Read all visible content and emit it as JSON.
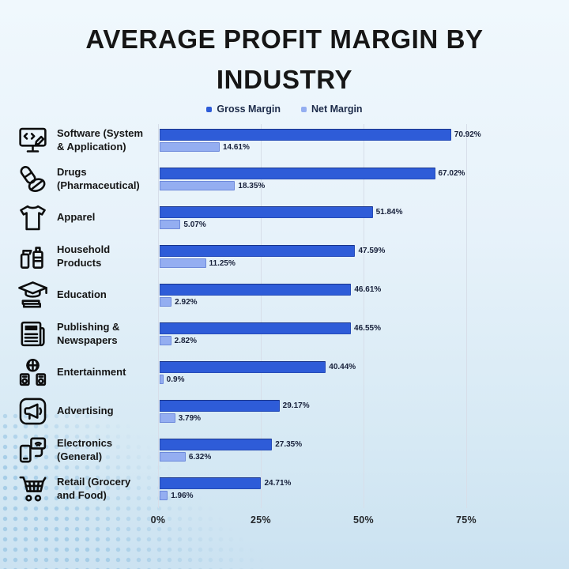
{
  "page": {
    "background_top_color": "#f0f8fd",
    "background_bottom_color": "#cbe2f1",
    "halftone_dot_color": "#a6cde7"
  },
  "title": {
    "line1": "AVERAGE PROFIT MARGIN BY",
    "line2": "INDUSTRY"
  },
  "chart_data": {
    "type": "bar",
    "orientation": "horizontal",
    "title": "AVERAGE PROFIT MARGIN BY INDUSTRY",
    "legend_position": "top",
    "grid": true,
    "axis": {
      "ticks": [
        "0%",
        "25%",
        "50%",
        "75%"
      ],
      "tick_values": [
        0,
        25,
        50,
        75
      ],
      "xlim": [
        0,
        96
      ]
    },
    "categories": [
      {
        "label": "Software (System\n& Application)",
        "icon": "monitor-code-icon"
      },
      {
        "label": "Drugs\n(Pharmaceutical)",
        "icon": "pills-icon"
      },
      {
        "label": "Apparel",
        "icon": "tshirt-icon"
      },
      {
        "label": "Household\nProducts",
        "icon": "household-bottles-icon"
      },
      {
        "label": "Education",
        "icon": "graduation-cap-icon"
      },
      {
        "label": "Publishing &\nNewspapers",
        "icon": "newspaper-icon"
      },
      {
        "label": "Entertainment",
        "icon": "disco-ball-icon"
      },
      {
        "label": "Advertising",
        "icon": "megaphone-icon"
      },
      {
        "label": "Electronics\n(General)",
        "icon": "payment-devices-icon"
      },
      {
        "label": "Retail (Grocery\nand Food)",
        "icon": "shopping-cart-icon"
      }
    ],
    "series": [
      {
        "name": "Gross Margin",
        "color": "#2e5cd8",
        "values": [
          70.92,
          67.02,
          51.84,
          47.59,
          46.61,
          46.55,
          40.44,
          29.17,
          27.35,
          24.71
        ],
        "labels": [
          "70.92%",
          "67.02%",
          "51.84%",
          "47.59%",
          "46.61%",
          "46.55%",
          "40.44%",
          "29.17%",
          "27.35%",
          "24.71%"
        ]
      },
      {
        "name": "Net Margin",
        "color": "#94aef1",
        "values": [
          14.61,
          18.35,
          5.07,
          11.25,
          2.92,
          2.82,
          0.9,
          3.79,
          6.32,
          1.96
        ],
        "labels": [
          "14.61%",
          "18.35%",
          "5.07%",
          "11.25%",
          "2.92%",
          "2.82%",
          "0.9%",
          "3.79%",
          "6.32%",
          "1.96%"
        ]
      }
    ]
  }
}
